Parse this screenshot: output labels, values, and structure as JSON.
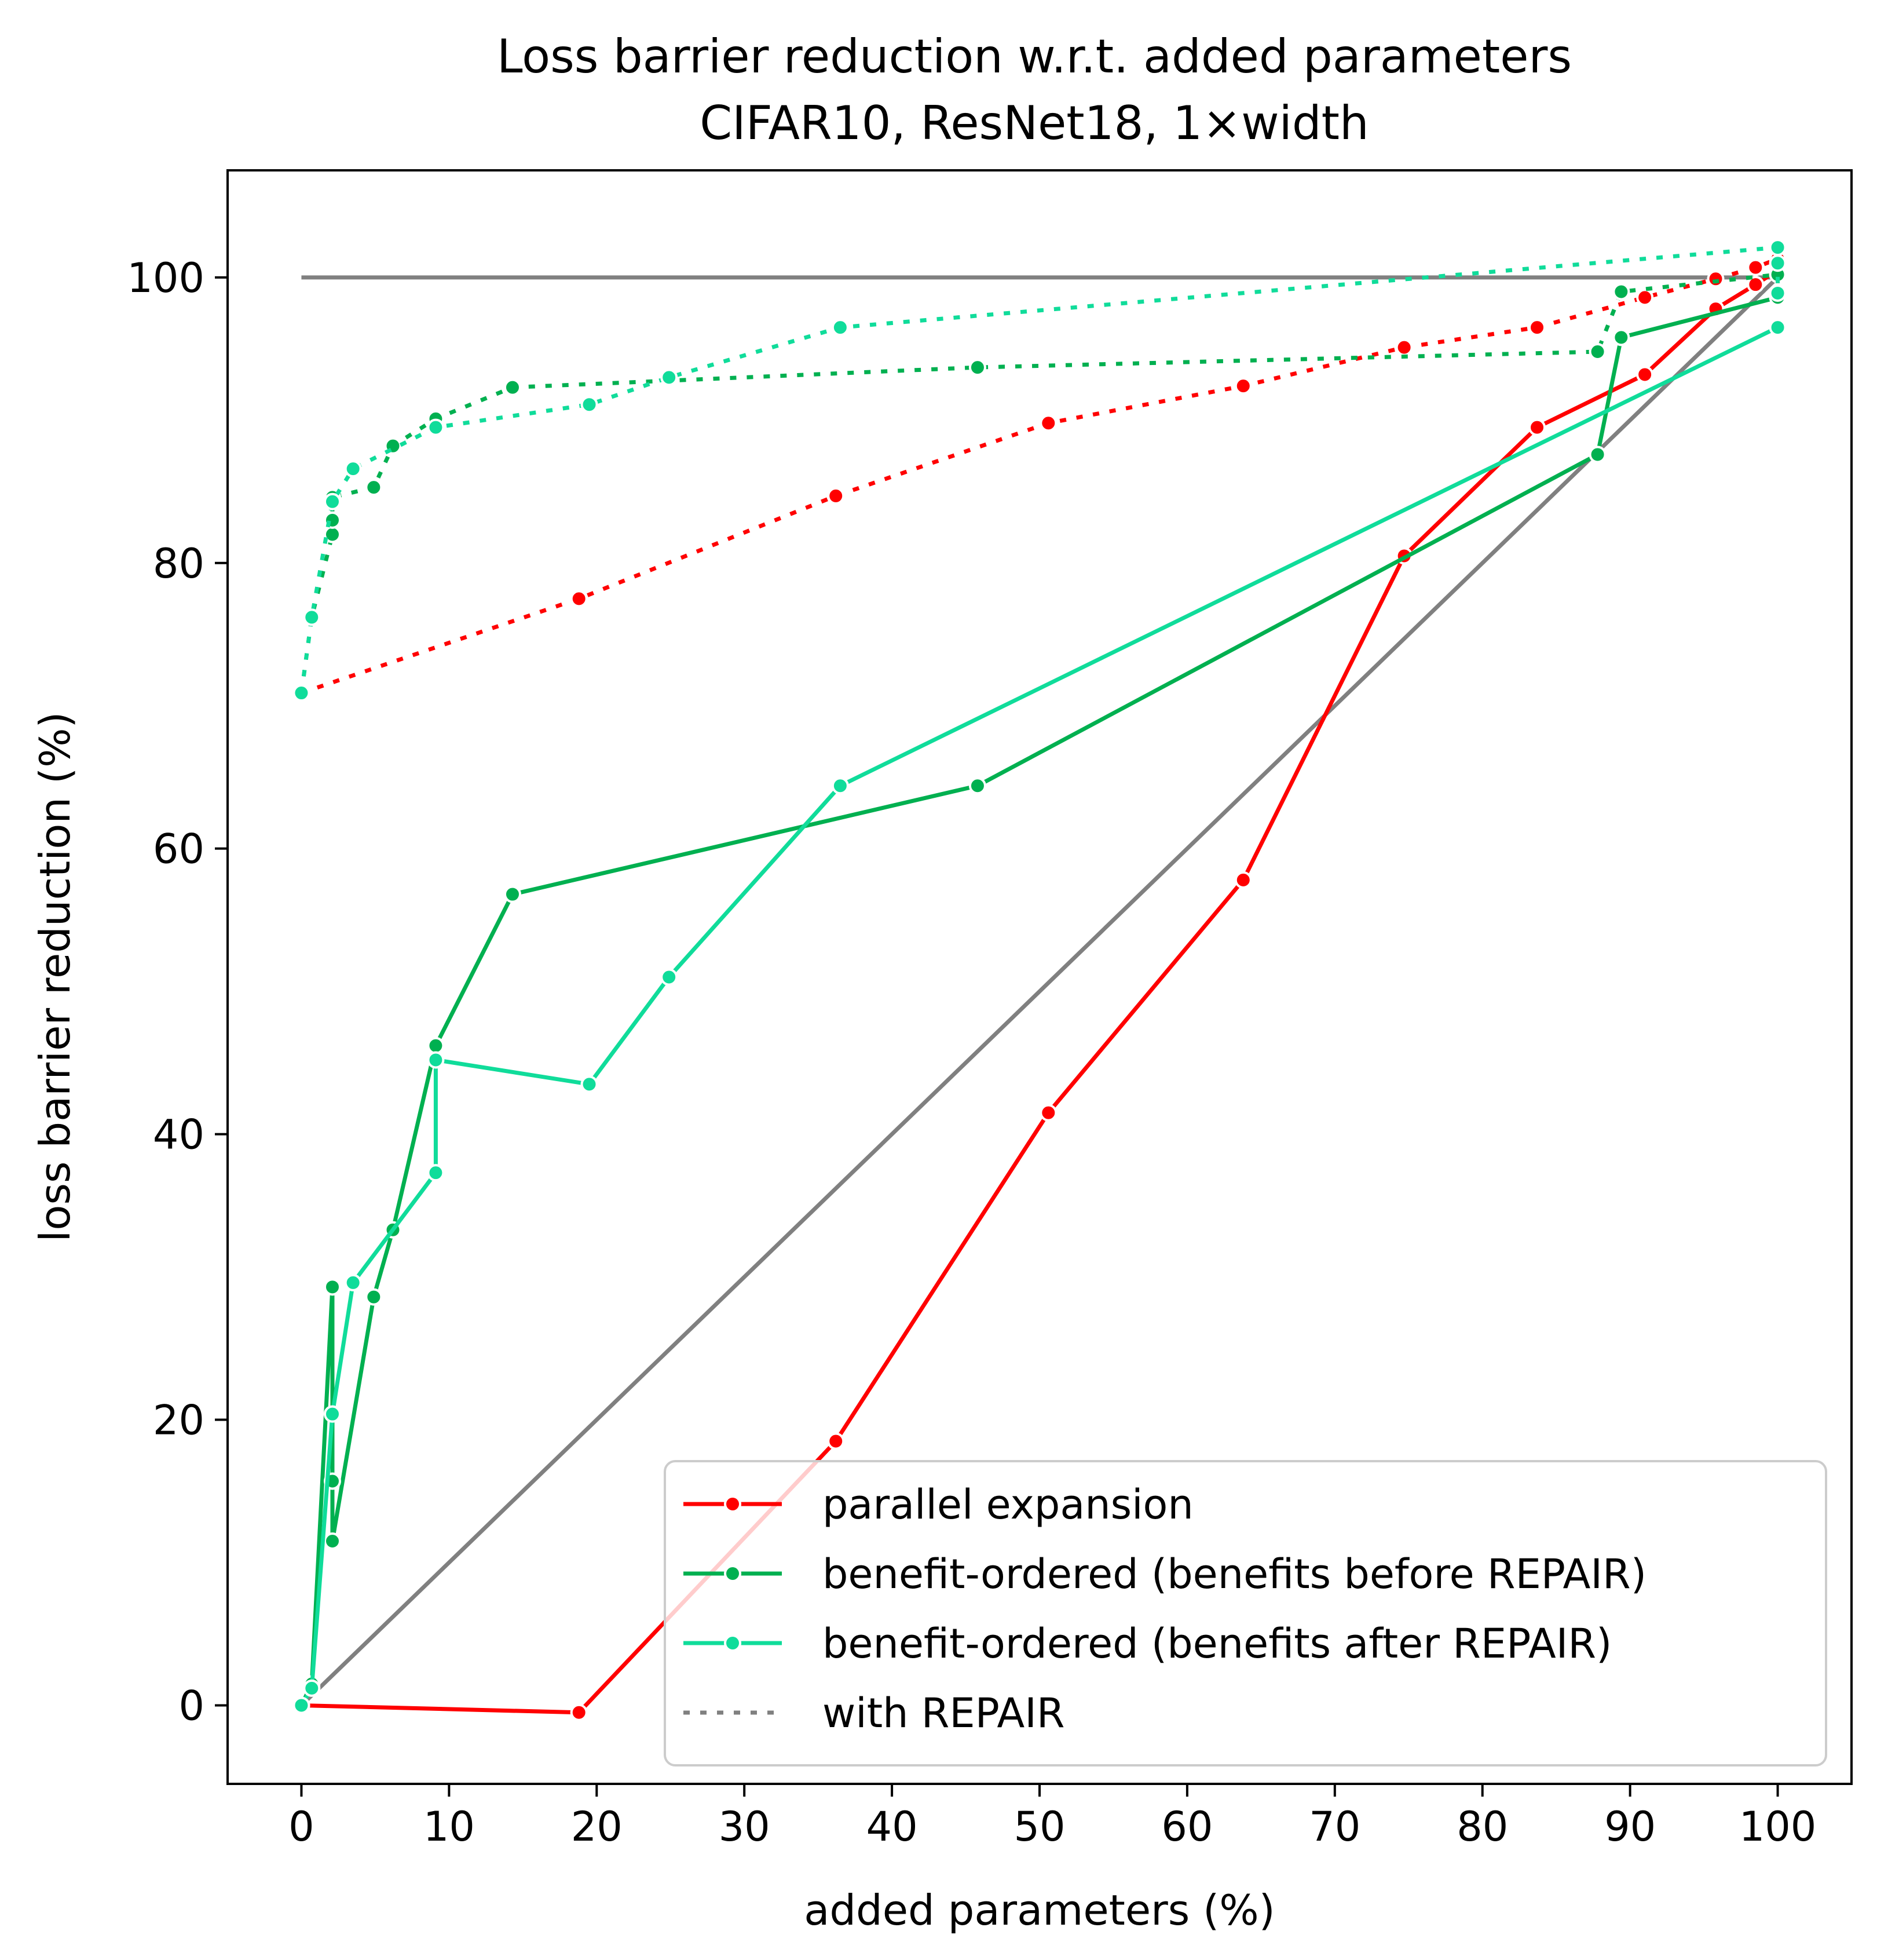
{
  "chart_data": {
    "type": "line",
    "title": "Loss barrier reduction w.r.t. added parameters",
    "subtitle": "CIFAR10, ResNet18, 1×width",
    "xlabel": "added parameters (%)",
    "ylabel": "loss barrier reduction (%)",
    "xlim": [
      -5,
      105
    ],
    "ylim": [
      -5.5,
      107.5
    ],
    "xticks": [
      0,
      10,
      20,
      30,
      40,
      50,
      60,
      70,
      80,
      90,
      100
    ],
    "yticks": [
      0,
      20,
      40,
      60,
      80,
      100
    ],
    "grid": false,
    "legend_position": "bottom-right",
    "legend": [
      {
        "label": "parallel expansion",
        "color": "#ff0000",
        "style": "solid-marker"
      },
      {
        "label": "benefit-ordered (benefits before REPAIR)",
        "color": "#00b050",
        "style": "solid-marker"
      },
      {
        "label": "benefit-ordered (benefits after REPAIR)",
        "color": "#10dc9a",
        "style": "solid-marker"
      },
      {
        "label": "with REPAIR",
        "color": "#808080",
        "style": "dotted"
      }
    ],
    "reference_lines": [
      {
        "color": "#808080",
        "points": [
          [
            0,
            100
          ],
          [
            100,
            100
          ]
        ]
      },
      {
        "color": "#808080",
        "points": [
          [
            0,
            0
          ],
          [
            100,
            100
          ]
        ]
      }
    ],
    "series": [
      {
        "name": "parallel expansion",
        "color": "#ff0000",
        "dash": "solid",
        "points": [
          [
            0,
            0
          ],
          [
            18.8,
            -0.5
          ],
          [
            36.2,
            18.5
          ],
          [
            50.6,
            41.5
          ],
          [
            63.8,
            57.8
          ],
          [
            74.7,
            80.5
          ],
          [
            83.7,
            89.5
          ],
          [
            91.0,
            93.2
          ],
          [
            95.8,
            97.8
          ],
          [
            98.5,
            99.5
          ],
          [
            100,
            100.5
          ]
        ]
      },
      {
        "name": "benefit-ordered (benefits before REPAIR)",
        "color": "#00b050",
        "dash": "solid",
        "points": [
          [
            0,
            0
          ],
          [
            0.7,
            1.5
          ],
          [
            2.1,
            29.3
          ],
          [
            2.1,
            15.7
          ],
          [
            2.1,
            11.5
          ],
          [
            4.9,
            28.6
          ],
          [
            6.2,
            33.3
          ],
          [
            9.1,
            46.2
          ],
          [
            14.3,
            56.8
          ],
          [
            45.8,
            64.4
          ],
          [
            87.8,
            87.6
          ],
          [
            89.4,
            95.8
          ],
          [
            100,
            98.6
          ]
        ]
      },
      {
        "name": "benefit-ordered (benefits after REPAIR)",
        "color": "#10dc9a",
        "dash": "solid",
        "points": [
          [
            0,
            0
          ],
          [
            0.7,
            1.2
          ],
          [
            2.1,
            20.4
          ],
          [
            3.5,
            29.6
          ],
          [
            9.1,
            37.3
          ],
          [
            9.1,
            45.2
          ],
          [
            19.5,
            43.5
          ],
          [
            24.9,
            51.0
          ],
          [
            36.5,
            64.4
          ],
          [
            100,
            96.5
          ]
        ]
      },
      {
        "name": "parallel expansion with REPAIR",
        "color": "#ff0000",
        "dash": "dotted",
        "points": [
          [
            0,
            70.9
          ],
          [
            18.8,
            77.5
          ],
          [
            36.2,
            84.7
          ],
          [
            50.6,
            89.8
          ],
          [
            63.8,
            92.4
          ],
          [
            74.7,
            95.1
          ],
          [
            83.7,
            96.5
          ],
          [
            91.0,
            98.6
          ],
          [
            95.8,
            99.9
          ],
          [
            98.5,
            100.7
          ],
          [
            100,
            101.3
          ]
        ]
      },
      {
        "name": "benefit-ordered (before) with REPAIR",
        "color": "#00b050",
        "dash": "dotted",
        "points": [
          [
            0,
            70.9
          ],
          [
            0.7,
            76.2
          ],
          [
            2.1,
            82.0
          ],
          [
            2.1,
            83.0
          ],
          [
            2.1,
            84.6
          ],
          [
            4.9,
            85.3
          ],
          [
            6.2,
            88.2
          ],
          [
            9.1,
            90.1
          ],
          [
            14.3,
            92.3
          ],
          [
            45.8,
            93.7
          ],
          [
            87.8,
            94.8
          ],
          [
            89.4,
            99.0
          ],
          [
            100,
            100.2
          ]
        ]
      },
      {
        "name": "benefit-ordered (after) with REPAIR",
        "color": "#10dc9a",
        "dash": "dotted",
        "points": [
          [
            0,
            70.9
          ],
          [
            0.7,
            76.2
          ],
          [
            2.1,
            84.3
          ],
          [
            3.5,
            86.6
          ],
          [
            9.1,
            89.5
          ],
          [
            19.5,
            91.1
          ],
          [
            24.9,
            93.0
          ],
          [
            36.5,
            96.5
          ],
          [
            100,
            102.1
          ],
          [
            100,
            101.0
          ],
          [
            100,
            98.9
          ]
        ]
      }
    ]
  }
}
